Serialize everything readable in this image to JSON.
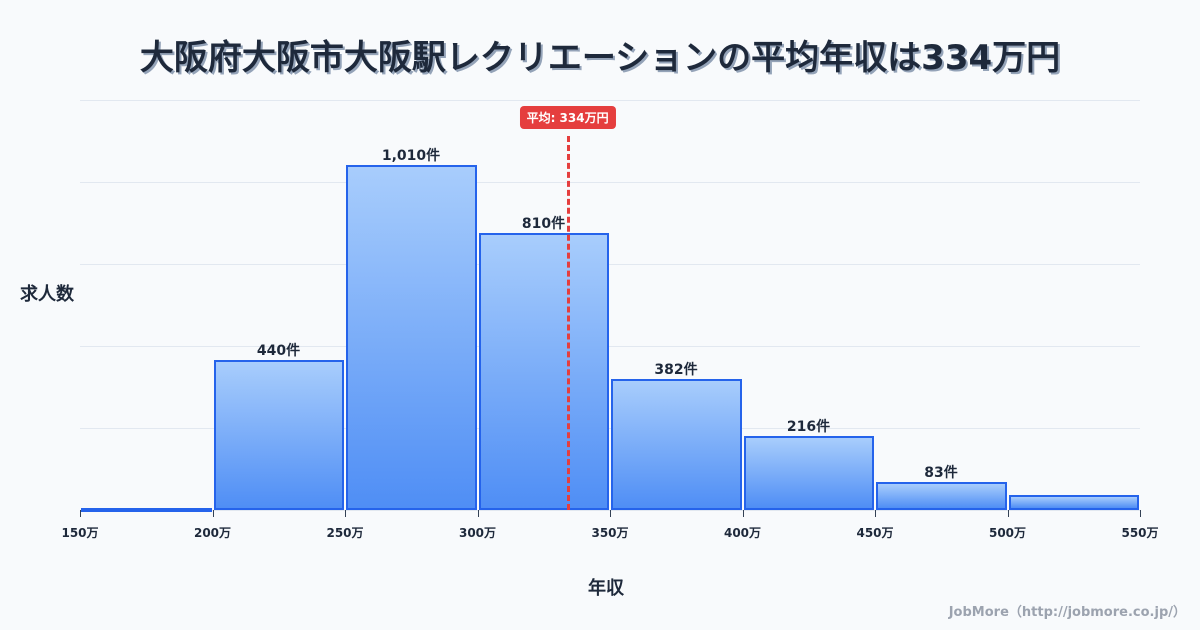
{
  "title": "大阪府大阪市大阪駅レクリエーションの平均年収は334万円",
  "y_axis_label": "求人数",
  "x_axis_label": "年収",
  "credit": "JobMore（http://jobmore.co.jp/）",
  "mean": {
    "label": "平均: 334万円",
    "value": 334,
    "color": "#e53e3e"
  },
  "colors": {
    "bar_fill_top": "#a8cdfc",
    "bar_fill_bottom": "#4f8ef5",
    "bar_border": "#2563eb"
  },
  "chart_data": {
    "type": "bar",
    "title": "大阪府大阪市大阪駅レクリエーションの平均年収は334万円",
    "xlabel": "年収",
    "ylabel": "求人数",
    "x_ticks": [
      "150万",
      "200万",
      "250万",
      "300万",
      "350万",
      "400万",
      "450万",
      "500万",
      "550万"
    ],
    "categories": [
      "150-200万",
      "200-250万",
      "250-300万",
      "300-350万",
      "350-400万",
      "400-450万",
      "450-500万",
      "500-550万"
    ],
    "values": [
      4,
      440,
      1010,
      810,
      382,
      216,
      83,
      44
    ],
    "value_labels": [
      "",
      "440件",
      "1,010件",
      "810件",
      "382件",
      "216件",
      "83件",
      ""
    ],
    "ylim": [
      0,
      1200
    ],
    "grid": true,
    "mean_line": {
      "x": 334,
      "label": "平均: 334万円"
    }
  }
}
